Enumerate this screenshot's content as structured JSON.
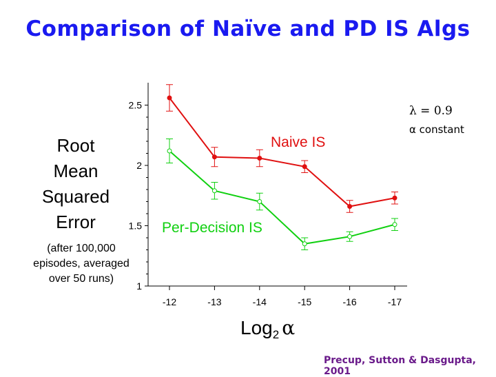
{
  "slide": {
    "title": "Comparison of Naïve and PD IS Algs",
    "ylabel_lines": [
      "Root",
      "Mean",
      "Squared",
      "Error"
    ],
    "ynote_lines": [
      "(after 100,000",
      "episodes, averaged",
      "over 50 runs)"
    ],
    "param_lambda": "λ = 0.9",
    "param_alpha": "α  constant",
    "citation": "Precup, Sutton & Dasgupta, 2001"
  },
  "chart_data": {
    "type": "line",
    "xlabel_base": "Log",
    "xlabel_sub": "2",
    "xlabel_sym": "α",
    "x": [
      -12,
      -13,
      -14,
      -15,
      -16,
      -17
    ],
    "x_tick_labels": [
      "-12",
      "-13",
      "-14",
      "-15",
      "-16",
      "-17"
    ],
    "y_ticks": [
      1,
      1.5,
      2,
      2.5
    ],
    "y_tick_labels": [
      "1",
      "1.5",
      "2",
      "2.5"
    ],
    "ylim": [
      1,
      2.6
    ],
    "series": [
      {
        "name": "Naive IS",
        "color": "#e01010",
        "marker": "filled-circle",
        "values": [
          2.56,
          2.07,
          2.06,
          1.99,
          1.66,
          1.73
        ],
        "error": [
          0.11,
          0.08,
          0.07,
          0.05,
          0.05,
          0.05
        ]
      },
      {
        "name": "Per-Decision IS",
        "color": "#10d010",
        "marker": "open-circle",
        "values": [
          2.12,
          1.79,
          1.7,
          1.35,
          1.41,
          1.51
        ],
        "error": [
          0.1,
          0.07,
          0.07,
          0.05,
          0.04,
          0.05
        ]
      }
    ]
  }
}
